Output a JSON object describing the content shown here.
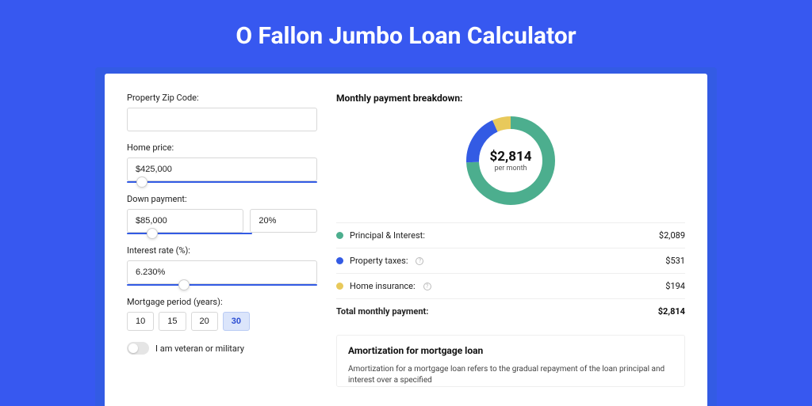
{
  "title": "O Fallon Jumbo Loan Calculator",
  "colors": {
    "page_bg": "#3758f0",
    "outer_card_bg": "#335be4",
    "inner_card_bg": "#ffffff",
    "slider_track": "#335be4",
    "period_active_bg": "#dbe5fb"
  },
  "form": {
    "zip_label": "Property Zip Code:",
    "zip_value": "",
    "home_price_label": "Home price:",
    "home_price_value": "$425,000",
    "home_price_slider_pct": 8,
    "down_payment_label": "Down payment:",
    "down_payment_value": "$85,000",
    "down_payment_pct_value": "20%",
    "down_payment_slider_pct": 20,
    "rate_label": "Interest rate (%):",
    "rate_value": "6.230%",
    "rate_slider_pct": 30,
    "period_label": "Mortgage period (years):",
    "period_options": [
      "10",
      "15",
      "20",
      "30"
    ],
    "period_selected_index": 3,
    "veteran_label": "I am veteran or military",
    "veteran_on": false
  },
  "breakdown": {
    "title": "Monthly payment breakdown:",
    "donut": {
      "amount": "$2,814",
      "sub": "per month",
      "segments": [
        {
          "name": "principal_interest",
          "value": 2089,
          "color": "#4cae8e"
        },
        {
          "name": "property_taxes",
          "value": 531,
          "color": "#335be4"
        },
        {
          "name": "home_insurance",
          "value": 194,
          "color": "#e8c95b"
        }
      ],
      "stroke_width": 16
    },
    "rows": [
      {
        "label": "Principal & Interest:",
        "value": "$2,089",
        "dot": "#4cae8e",
        "info": false
      },
      {
        "label": "Property taxes:",
        "value": "$531",
        "dot": "#335be4",
        "info": true
      },
      {
        "label": "Home insurance:",
        "value": "$194",
        "dot": "#e8c95b",
        "info": true
      }
    ],
    "total_label": "Total monthly payment:",
    "total_value": "$2,814"
  },
  "amortization": {
    "title": "Amortization for mortgage loan",
    "text": "Amortization for a mortgage loan refers to the gradual repayment of the loan principal and interest over a specified"
  }
}
